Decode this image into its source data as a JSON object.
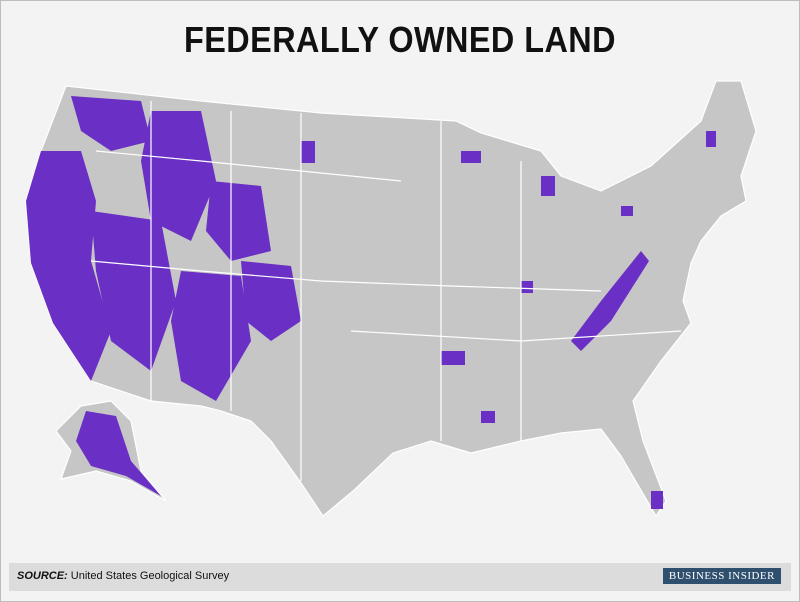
{
  "header": {
    "title": "FEDERALLY OWNED LAND"
  },
  "footer": {
    "source_label": "SOURCE:",
    "source": "United States Geological Survey",
    "brand": "BUSINESS INSIDER"
  }
}
